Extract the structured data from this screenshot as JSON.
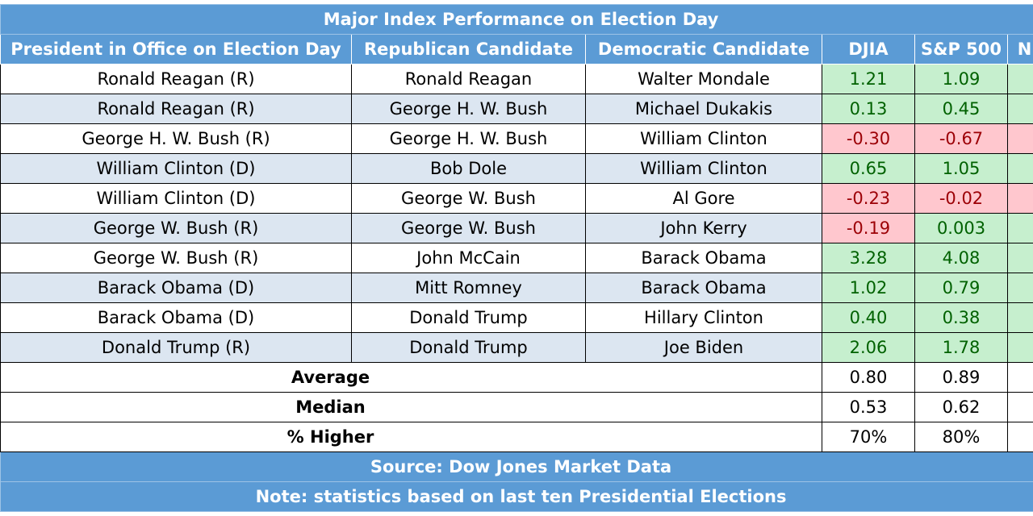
{
  "title": "Major Index Performance on Election Day",
  "header": [
    "President in Office on Election Day",
    "Republican Candidate",
    "Democratic Candidate",
    "DJIA",
    "S&P 500",
    "N"
  ],
  "rows": [
    [
      "Ronald Reagan (R)",
      "Ronald Reagan",
      "Walter Mondale",
      "1.21",
      "1.09"
    ],
    [
      "Ronald Reagan (R)",
      "George H. W. Bush",
      "Michael Dukakis",
      "0.13",
      "0.45"
    ],
    [
      "George H. W. Bush (R)",
      "George H. W. Bush",
      "William Clinton",
      "-0.30",
      "-0.67"
    ],
    [
      "William Clinton (D)",
      "Bob Dole",
      "William Clinton",
      "0.65",
      "1.05"
    ],
    [
      "William Clinton (D)",
      "George W. Bush",
      "Al Gore",
      "-0.23",
      "-0.02"
    ],
    [
      "George W. Bush (R)",
      "George W. Bush",
      "John Kerry",
      "-0.19",
      "0.003"
    ],
    [
      "George W. Bush (R)",
      "John McCain",
      "Barack Obama",
      "3.28",
      "4.08"
    ],
    [
      "Barack Obama (D)",
      "Mitt Romney",
      "Barack Obama",
      "1.02",
      "0.79"
    ],
    [
      "Barack Obama (D)",
      "Donald Trump",
      "Hillary Clinton",
      "0.40",
      "0.38"
    ],
    [
      "Donald Trump (R)",
      "Donald Trump",
      "Joe Biden",
      "2.06",
      "1.78"
    ]
  ],
  "truncated_column_fills": [
    "#c6efce",
    "#c6efce",
    "#ffc7ce",
    "#c6efce",
    "#ffc7ce",
    "#c6efce",
    "#c6efce",
    "#c6efce",
    "#c6efce",
    "#c6efce"
  ],
  "summary": [
    [
      "Average",
      "0.80",
      "0.89"
    ],
    [
      "Median",
      "0.53",
      "0.62"
    ],
    [
      "% Higher",
      "70%",
      "80%"
    ]
  ],
  "source": "Source: Dow Jones Market Data",
  "note": "Note: statistics based on last ten Presidential Elections"
}
